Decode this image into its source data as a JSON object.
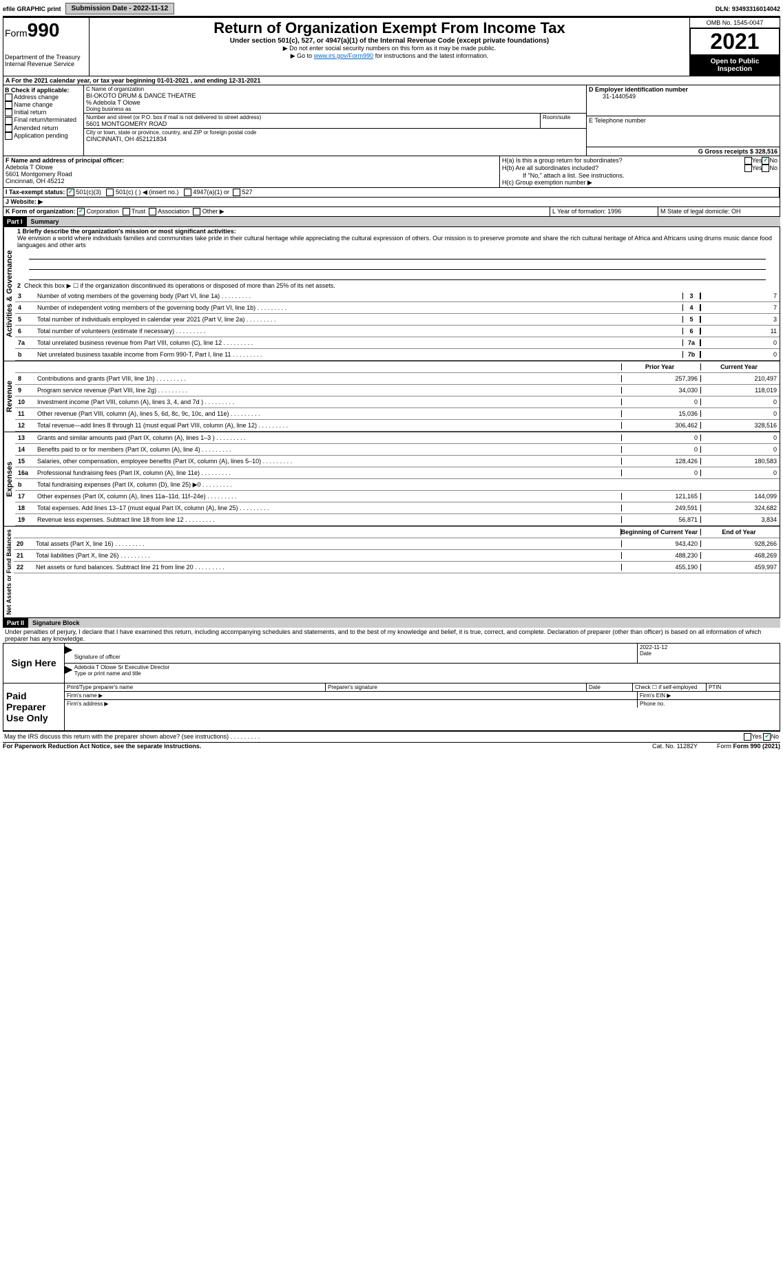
{
  "topbar": {
    "efile": "efile GRAPHIC print",
    "submission_label": "Submission Date - 2022-11-12",
    "dln_label": "DLN: 93493316014042"
  },
  "header": {
    "form_prefix": "Form",
    "form_number": "990",
    "dept": "Department of the Treasury",
    "irs": "Internal Revenue Service",
    "title": "Return of Organization Exempt From Income Tax",
    "subtitle": "Under section 501(c), 527, or 4947(a)(1) of the Internal Revenue Code (except private foundations)",
    "note1": "▶ Do not enter social security numbers on this form as it may be made public.",
    "note2_prefix": "▶ Go to ",
    "note2_link": "www.irs.gov/Form990",
    "note2_suffix": " for instructions and the latest information.",
    "omb": "OMB No. 1545-0047",
    "year": "2021",
    "open": "Open to Public Inspection"
  },
  "period": {
    "line": "A For the 2021 calendar year, or tax year beginning 01-01-2021   , and ending 12-31-2021"
  },
  "box_b": {
    "title": "B Check if applicable:",
    "items": [
      "Address change",
      "Name change",
      "Initial return",
      "Final return/terminated",
      "Amended return",
      "Application pending"
    ]
  },
  "box_c": {
    "label_name": "C Name of organization",
    "org_name": "BI-OKOTO DRUM & DANCE THEATRE",
    "care_of": "% Adebola T Olowe",
    "dba_label": "Doing business as",
    "addr_label": "Number and street (or P.O. box if mail is not delivered to street address)",
    "room_label": "Room/suite",
    "street": "5601 MONTGOMERY ROAD",
    "city_label": "City or town, state or province, country, and ZIP or foreign postal code",
    "city": "CINCINNATI, OH  452121834"
  },
  "box_d": {
    "label": "D Employer identification number",
    "value": "31-1440549"
  },
  "box_e": {
    "label": "E Telephone number",
    "value": ""
  },
  "box_g": {
    "label": "G Gross receipts $ 328,516"
  },
  "box_f": {
    "label": "F Name and address of principal officer:",
    "name": "Adebola T Olowe",
    "street": "5601 Montgomery Road",
    "city": "Cincinnati, OH  45212"
  },
  "box_h": {
    "a": "H(a)  Is this a group return for subordinates?",
    "b": "H(b)  Are all subordinates included?",
    "note": "If \"No,\" attach a list. See instructions.",
    "c": "H(c)  Group exemption number ▶"
  },
  "box_i": {
    "label": "I  Tax-exempt status:",
    "opts": [
      "501(c)(3)",
      "501(c) (   ) ◀ (insert no.)",
      "4947(a)(1) or",
      "527"
    ]
  },
  "box_j": {
    "label": "J  Website: ▶"
  },
  "box_k": {
    "label": "K Form of organization:",
    "opts": [
      "Corporation",
      "Trust",
      "Association",
      "Other ▶"
    ]
  },
  "box_l": {
    "label": "L Year of formation: 1996"
  },
  "box_m": {
    "label": "M State of legal domicile: OH"
  },
  "part1": {
    "header": "Part I",
    "title": "Summary",
    "sidebar_gov": "Activities & Governance",
    "sidebar_rev": "Revenue",
    "sidebar_exp": "Expenses",
    "sidebar_net": "Net Assets or Fund Balances",
    "q1": "1  Briefly describe the organization's mission or most significant activities:",
    "mission": "We envision a world where individuals families and communities take pride in their cultural heritage while appreciating the cultural expression of others. Our mission is to preserve promote and share the rich cultural heritage of Africa and Africans using drums music dance food languages and other arts",
    "q2": "Check this box ▶ ☐  if the organization discontinued its operations or disposed of more than 25% of its net assets.",
    "lines_gov": [
      {
        "n": "3",
        "label": "Number of voting members of the governing body (Part VI, line 1a)",
        "box": "3",
        "val": "7"
      },
      {
        "n": "4",
        "label": "Number of independent voting members of the governing body (Part VI, line 1b)",
        "box": "4",
        "val": "7"
      },
      {
        "n": "5",
        "label": "Total number of individuals employed in calendar year 2021 (Part V, line 2a)",
        "box": "5",
        "val": "3"
      },
      {
        "n": "6",
        "label": "Total number of volunteers (estimate if necessary)",
        "box": "6",
        "val": "11"
      },
      {
        "n": "7a",
        "label": "Total unrelated business revenue from Part VIII, column (C), line 12",
        "box": "7a",
        "val": "0"
      },
      {
        "n": "b",
        "label": "Net unrelated business taxable income from Form 990-T, Part I, line 11",
        "box": "7b",
        "val": "0"
      }
    ],
    "col_prior": "Prior Year",
    "col_current": "Current Year",
    "lines_rev": [
      {
        "n": "8",
        "label": "Contributions and grants (Part VIII, line 1h)",
        "prior": "257,396",
        "current": "210,497"
      },
      {
        "n": "9",
        "label": "Program service revenue (Part VIII, line 2g)",
        "prior": "34,030",
        "current": "118,019"
      },
      {
        "n": "10",
        "label": "Investment income (Part VIII, column (A), lines 3, 4, and 7d )",
        "prior": "0",
        "current": "0"
      },
      {
        "n": "11",
        "label": "Other revenue (Part VIII, column (A), lines 5, 6d, 8c, 9c, 10c, and 11e)",
        "prior": "15,036",
        "current": "0"
      },
      {
        "n": "12",
        "label": "Total revenue—add lines 8 through 11 (must equal Part VIII, column (A), line 12)",
        "prior": "306,462",
        "current": "328,516"
      }
    ],
    "lines_exp": [
      {
        "n": "13",
        "label": "Grants and similar amounts paid (Part IX, column (A), lines 1–3 )",
        "prior": "0",
        "current": "0"
      },
      {
        "n": "14",
        "label": "Benefits paid to or for members (Part IX, column (A), line 4)",
        "prior": "0",
        "current": "0"
      },
      {
        "n": "15",
        "label": "Salaries, other compensation, employee benefits (Part IX, column (A), lines 5–10)",
        "prior": "128,426",
        "current": "180,583"
      },
      {
        "n": "16a",
        "label": "Professional fundraising fees (Part IX, column (A), line 11e)",
        "prior": "0",
        "current": "0"
      },
      {
        "n": "b",
        "label": "Total fundraising expenses (Part IX, column (D), line 25) ▶0",
        "prior": "",
        "current": "",
        "grey": true
      },
      {
        "n": "17",
        "label": "Other expenses (Part IX, column (A), lines 11a–11d, 11f–24e)",
        "prior": "121,165",
        "current": "144,099"
      },
      {
        "n": "18",
        "label": "Total expenses. Add lines 13–17 (must equal Part IX, column (A), line 25)",
        "prior": "249,591",
        "current": "324,682"
      },
      {
        "n": "19",
        "label": "Revenue less expenses. Subtract line 18 from line 12",
        "prior": "56,871",
        "current": "3,834"
      }
    ],
    "col_begin": "Beginning of Current Year",
    "col_end": "End of Year",
    "lines_net": [
      {
        "n": "20",
        "label": "Total assets (Part X, line 16)",
        "prior": "943,420",
        "current": "928,266"
      },
      {
        "n": "21",
        "label": "Total liabilities (Part X, line 26)",
        "prior": "488,230",
        "current": "468,269"
      },
      {
        "n": "22",
        "label": "Net assets or fund balances. Subtract line 21 from line 20",
        "prior": "455,190",
        "current": "459,997"
      }
    ]
  },
  "part2": {
    "header": "Part II",
    "title": "Signature Block",
    "declaration": "Under penalties of perjury, I declare that I have examined this return, including accompanying schedules and statements, and to the best of my knowledge and belief, it is true, correct, and complete. Declaration of preparer (other than officer) is based on all information of which preparer has any knowledge.",
    "sign_here": "Sign Here",
    "sig_officer": "Signature of officer",
    "sig_date": "2022-11-12",
    "date_label": "Date",
    "officer_name": "Adebola T Olowe Sr  Executive Director",
    "type_name": "Type or print name and title",
    "paid": "Paid Preparer Use Only",
    "prep_name": "Print/Type preparer's name",
    "prep_sig": "Preparer's signature",
    "prep_date": "Date",
    "check_self": "Check ☐ if self-employed",
    "ptin": "PTIN",
    "firm_name": "Firm's name  ▶",
    "firm_ein": "Firm's EIN ▶",
    "firm_addr": "Firm's address ▶",
    "phone": "Phone no."
  },
  "footer": {
    "discuss": "May the IRS discuss this return with the preparer shown above? (see instructions)",
    "yes": "Yes",
    "no": "No",
    "paperwork": "For Paperwork Reduction Act Notice, see the separate instructions.",
    "cat": "Cat. No. 11282Y",
    "form": "Form 990 (2021)"
  }
}
